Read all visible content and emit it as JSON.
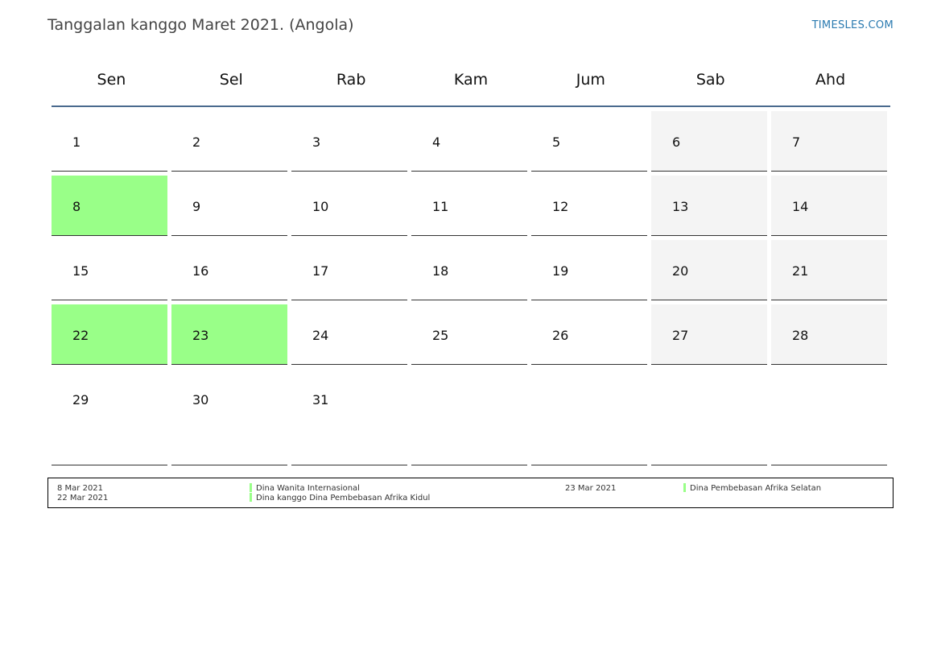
{
  "header": {
    "title": "Tanggalan kanggo Maret 2021. (Angola)",
    "site": "TIMESLES.COM"
  },
  "weekdays": [
    "Sen",
    "Sel",
    "Rab",
    "Kam",
    "Jum",
    "Sab",
    "Ahd"
  ],
  "weeks": [
    [
      "1",
      "2",
      "3",
      "4",
      "5",
      "6",
      "7"
    ],
    [
      "8",
      "9",
      "10",
      "11",
      "12",
      "13",
      "14"
    ],
    [
      "15",
      "16",
      "17",
      "18",
      "19",
      "20",
      "21"
    ],
    [
      "22",
      "23",
      "24",
      "25",
      "26",
      "27",
      "28"
    ],
    [
      "29",
      "30",
      "31",
      "",
      "",
      "",
      ""
    ]
  ],
  "colors": {
    "holiday": "#99ff88",
    "weekend": "#f4f4f4",
    "header_rule": "#4a6a8e",
    "link": "#2a7ab0"
  },
  "holidays": [
    {
      "date": "8 Mar 2021",
      "name": "Dina Wanita Internasional"
    },
    {
      "date": "22 Mar 2021",
      "name": "Dina kanggo Dina Pembebasan Afrika Kidul"
    },
    {
      "date": "23 Mar 2021",
      "name": "Dina Pembebasan Afrika Selatan"
    }
  ]
}
